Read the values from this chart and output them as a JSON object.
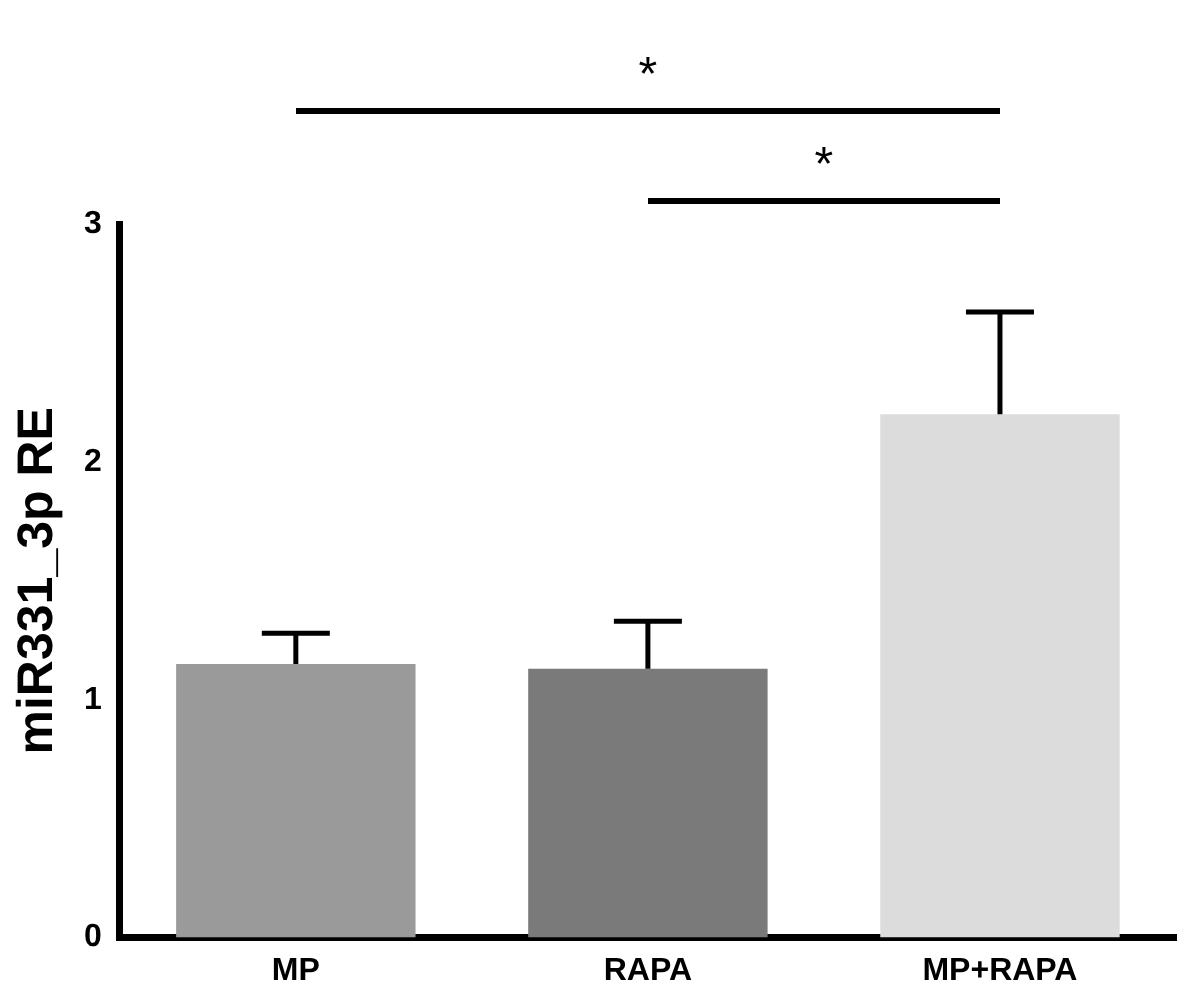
{
  "chart_data": {
    "type": "bar",
    "ylabel": "miR331_3p RE",
    "categories": [
      "MP",
      "RAPA",
      "MP+RAPA"
    ],
    "values": [
      1.15,
      1.13,
      2.2
    ],
    "errors": [
      [
        1.15,
        1.28
      ],
      [
        1.13,
        1.33
      ],
      [
        2.2,
        2.63
      ]
    ],
    "colors": [
      "#9a9a9a",
      "#7a7a7a",
      "#dcdcdc"
    ],
    "ylim": [
      0,
      3
    ],
    "yticks": [
      0,
      1,
      2,
      3
    ],
    "grid": false,
    "legend": false,
    "annotations": [
      "*",
      "*"
    ]
  }
}
